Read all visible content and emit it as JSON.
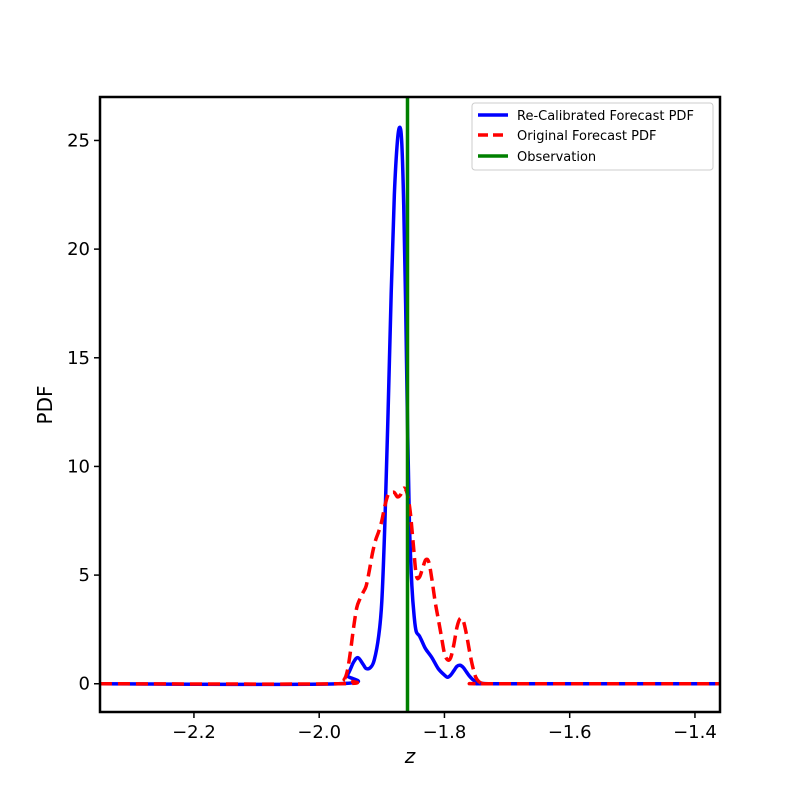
{
  "chart_data": {
    "type": "line",
    "title": "",
    "xlabel": "z",
    "ylabel": "PDF",
    "xlim": [
      -2.35,
      -1.36
    ],
    "ylim": [
      -1.3,
      27.0
    ],
    "xticks": [
      -2.2,
      -2.0,
      -1.8,
      -1.6,
      -1.4
    ],
    "xtick_labels": [
      "−2.2",
      "−2.0",
      "−1.8",
      "−1.6",
      "−1.4"
    ],
    "yticks": [
      0,
      5,
      10,
      15,
      20,
      25
    ],
    "ytick_labels": [
      "0",
      "5",
      "10",
      "15",
      "20",
      "25"
    ],
    "grid": false,
    "legend_position": "top-right",
    "series": [
      {
        "name": "Re-Calibrated Forecast PDF",
        "color": "#0000ff",
        "style": "solid",
        "x": [
          -2.35,
          -1.97,
          -1.955,
          -1.945,
          -1.938,
          -1.93,
          -1.925,
          -1.918,
          -1.912,
          -1.905,
          -1.9,
          -1.895,
          -1.89,
          -1.885,
          -1.88,
          -1.875,
          -1.871,
          -1.868,
          -1.865,
          -1.862,
          -1.859,
          -1.856,
          -1.852,
          -1.848,
          -1.845,
          -1.84,
          -1.835,
          -1.83,
          -1.82,
          -1.81,
          -1.8,
          -1.795,
          -1.79,
          -1.785,
          -1.78,
          -1.775,
          -1.77,
          -1.765,
          -1.76,
          -1.755,
          -1.75,
          -1.745,
          -1.74,
          -1.73,
          -1.72,
          -1.36
        ],
        "y": [
          0,
          0,
          0.4,
          1.0,
          1.2,
          0.9,
          0.7,
          0.75,
          1.1,
          2.2,
          3.8,
          7.5,
          12.5,
          18.0,
          22.5,
          25.0,
          25.6,
          24.8,
          22.0,
          17.5,
          12.0,
          7.5,
          4.5,
          3.0,
          2.4,
          2.2,
          1.9,
          1.6,
          1.2,
          0.7,
          0.4,
          0.3,
          0.4,
          0.6,
          0.8,
          0.85,
          0.75,
          0.55,
          0.35,
          0.2,
          0.1,
          0.05,
          0.02,
          0,
          0,
          0
        ]
      },
      {
        "name": "Original Forecast PDF",
        "color": "#ff0000",
        "style": "dashed",
        "x": [
          -2.35,
          -1.97,
          -1.96,
          -1.955,
          -1.95,
          -1.945,
          -1.94,
          -1.935,
          -1.93,
          -1.925,
          -1.92,
          -1.915,
          -1.91,
          -1.905,
          -1.9,
          -1.895,
          -1.89,
          -1.885,
          -1.88,
          -1.875,
          -1.87,
          -1.865,
          -1.86,
          -1.855,
          -1.85,
          -1.845,
          -1.84,
          -1.835,
          -1.83,
          -1.825,
          -1.82,
          -1.815,
          -1.81,
          -1.805,
          -1.8,
          -1.795,
          -1.79,
          -1.785,
          -1.78,
          -1.775,
          -1.77,
          -1.765,
          -1.76,
          -1.755,
          -1.75,
          -1.745,
          -1.74,
          -1.73,
          -1.36
        ],
        "y": [
          0,
          0,
          0.2,
          0.6,
          1.5,
          2.6,
          3.5,
          3.9,
          4.2,
          4.5,
          5.2,
          6.0,
          6.6,
          7.0,
          7.5,
          8.2,
          8.7,
          8.8,
          8.8,
          8.6,
          8.7,
          9.0,
          8.8,
          8.0,
          6.5,
          5.0,
          4.9,
          5.3,
          5.7,
          5.6,
          4.8,
          3.8,
          3.0,
          2.2,
          1.4,
          1.1,
          1.2,
          1.8,
          2.6,
          3.0,
          2.9,
          2.3,
          1.5,
          0.8,
          0.3,
          0.1,
          0.02,
          0,
          0
        ]
      },
      {
        "name": "Observation",
        "color": "#008000",
        "style": "vertical-line",
        "x_value": -1.859
      }
    ]
  }
}
